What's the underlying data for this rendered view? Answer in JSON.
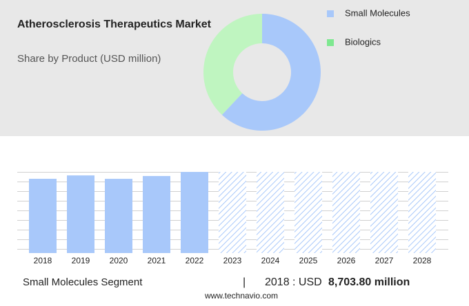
{
  "chart_data": [
    {
      "type": "pie",
      "title": "Atherosclerosis Therapeutics Market",
      "subtitle": "Share by Product (USD million)",
      "categories": [
        "Small Molecules",
        "Biologics"
      ],
      "values": [
        62,
        38
      ],
      "colors": [
        "#a8c8fa",
        "#bff5c0"
      ],
      "legend_colors": [
        "#a8c8fa",
        "#7ee890"
      ],
      "donut": true
    },
    {
      "type": "bar",
      "categories": [
        "2018",
        "2019",
        "2020",
        "2021",
        "2022",
        "2023",
        "2024",
        "2025",
        "2026",
        "2027",
        "2028"
      ],
      "values": [
        8703.8,
        9100,
        8700,
        9030,
        9510,
        null,
        null,
        null,
        null,
        null,
        null
      ],
      "color": "#a8c8fa",
      "forecast_color": "#a8c8fa",
      "ylim": [
        0,
        9510
      ]
    }
  ],
  "footer": {
    "segment": "Small Molecules Segment",
    "separator": "|",
    "year_prefix": "2018 : USD",
    "highlight": "8,703.80 million",
    "source": "www.technavio.com"
  }
}
